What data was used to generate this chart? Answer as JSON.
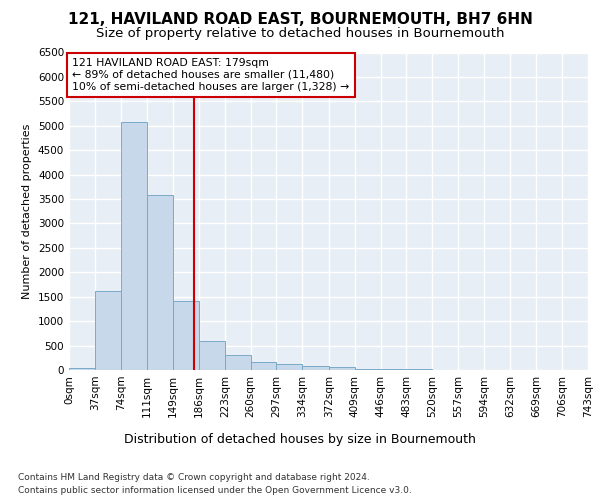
{
  "title1": "121, HAVILAND ROAD EAST, BOURNEMOUTH, BH7 6HN",
  "title2": "Size of property relative to detached houses in Bournemouth",
  "xlabel": "Distribution of detached houses by size in Bournemouth",
  "ylabel": "Number of detached properties",
  "footer1": "Contains HM Land Registry data © Crown copyright and database right 2024.",
  "footer2": "Contains public sector information licensed under the Open Government Licence v3.0.",
  "bar_color": "#c8d8eb",
  "bar_edge_color": "#7aaac8",
  "background_color": "#e8eef5",
  "grid_color": "#ffffff",
  "red_line_color": "#cc0000",
  "annotation_line1": "121 HAVILAND ROAD EAST: 179sqm",
  "annotation_line2": "← 89% of detached houses are smaller (11,480)",
  "annotation_line3": "10% of semi-detached houses are larger (1,328) →",
  "property_size": 179,
  "ylim": [
    0,
    6500
  ],
  "bin_edges": [
    0,
    37,
    74,
    111,
    149,
    186,
    223,
    260,
    297,
    334,
    372,
    409,
    446,
    483,
    520,
    557,
    594,
    632,
    669,
    706,
    743
  ],
  "bin_labels": [
    "0sqm",
    "37sqm",
    "74sqm",
    "111sqm",
    "149sqm",
    "186sqm",
    "223sqm",
    "260sqm",
    "297sqm",
    "334sqm",
    "372sqm",
    "409sqm",
    "446sqm",
    "483sqm",
    "520sqm",
    "557sqm",
    "594sqm",
    "632sqm",
    "669sqm",
    "706sqm",
    "743sqm"
  ],
  "bar_heights": [
    50,
    1620,
    5080,
    3580,
    1420,
    600,
    300,
    155,
    120,
    90,
    55,
    30,
    22,
    12,
    7,
    4,
    2,
    1,
    1,
    0
  ],
  "yticks": [
    0,
    500,
    1000,
    1500,
    2000,
    2500,
    3000,
    3500,
    4000,
    4500,
    5000,
    5500,
    6000,
    6500
  ],
  "title1_fontsize": 11,
  "title2_fontsize": 9.5,
  "ylabel_fontsize": 8,
  "xlabel_fontsize": 9,
  "tick_fontsize": 7.5,
  "footer_fontsize": 6.5
}
